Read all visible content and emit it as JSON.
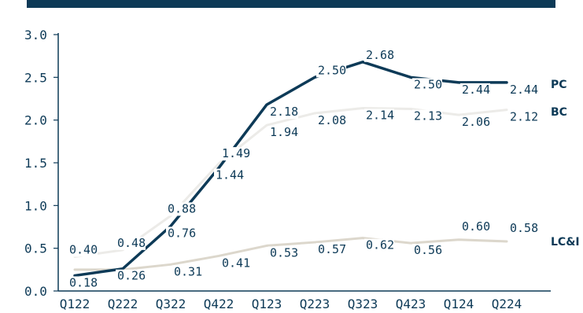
{
  "chart_data": {
    "type": "line",
    "categories": [
      "Q122",
      "Q222",
      "Q322",
      "Q422",
      "Q123",
      "Q223",
      "Q323",
      "Q423",
      "Q124",
      "Q224"
    ],
    "ylim": [
      0,
      3.0
    ],
    "yticks": [
      "0.0",
      "0.5",
      "1.0",
      "1.5",
      "2.0",
      "2.5",
      "3.0"
    ],
    "grid": false,
    "legend": "end-of-line labels",
    "series": [
      {
        "name": "PC",
        "color": "#0d3a57",
        "values": [
          0.18,
          0.26,
          0.76,
          1.44,
          2.18,
          2.5,
          2.68,
          2.5,
          2.44,
          2.44
        ],
        "labels": [
          "0.18",
          "0.26",
          "0.76",
          "1.44",
          "2.18",
          "2.50",
          "2.68",
          "2.50",
          "2.44",
          "2.44"
        ]
      },
      {
        "name": "BC",
        "color": "#ecebe8",
        "values": [
          0.4,
          0.48,
          0.88,
          1.49,
          1.94,
          2.08,
          2.14,
          2.13,
          2.06,
          2.12
        ],
        "labels": [
          "0.40",
          "0.48",
          "0.88",
          "1.49",
          "1.94",
          "2.08",
          "2.14",
          "2.13",
          "2.06",
          "2.12"
        ]
      },
      {
        "name": "LC&I",
        "color": "#dcd7cc",
        "values": [
          0.25,
          0.25,
          0.31,
          0.41,
          0.53,
          0.57,
          0.62,
          0.56,
          0.6,
          0.58
        ],
        "labels": [
          "",
          "",
          "0.31",
          "0.41",
          "0.53",
          "0.57",
          "0.62",
          "0.56",
          "0.60",
          "0.58"
        ]
      }
    ]
  }
}
